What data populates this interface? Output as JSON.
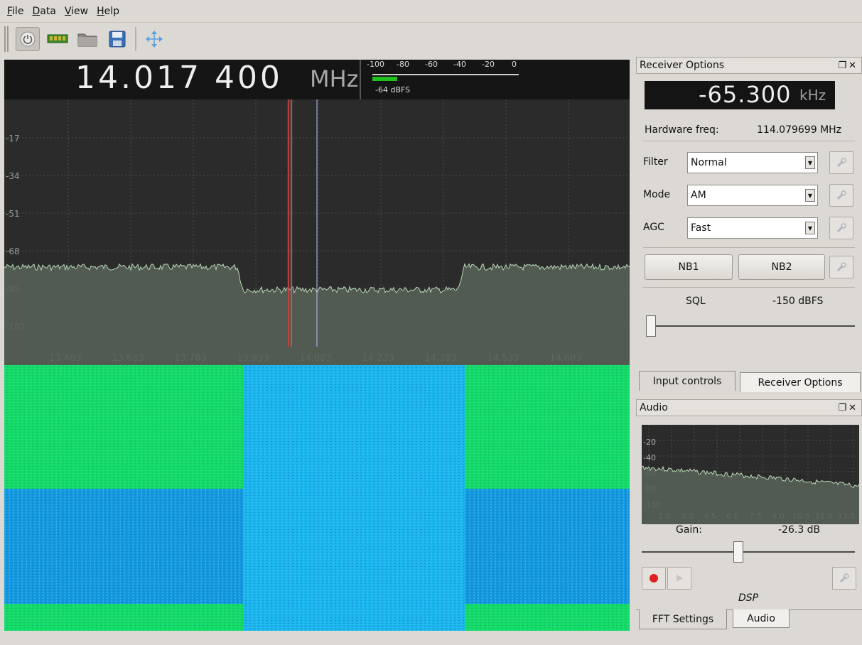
{
  "menu": [
    {
      "first": "F",
      "rest": "ile"
    },
    {
      "first": "D",
      "rest": "ata"
    },
    {
      "first": "V",
      "rest": "iew"
    },
    {
      "first": "H",
      "rest": "elp"
    }
  ],
  "toolbar": {
    "buttons": [
      "power-icon",
      "hardware-board-icon",
      "folder-icon",
      "save-icon",
      "move-arrows-icon"
    ]
  },
  "frequency": {
    "value": "14.017 400",
    "unit": "MHz"
  },
  "smeter": {
    "scale": [
      "-100",
      "-80",
      "-60",
      "-40",
      "-20",
      "0"
    ],
    "readout": "-64 dBFS",
    "level_dbfs": -64
  },
  "spectrum": {
    "y_ticks": [
      "-17",
      "-34",
      "-51",
      "-68",
      "-85",
      "-102"
    ],
    "x_ticks": [
      "13.483",
      "13.633",
      "13.783",
      "13.933",
      "14.083",
      "14.233",
      "14.383",
      "14.533",
      "14.683"
    ]
  },
  "receiver_options": {
    "title": "Receiver Options",
    "offset_value": "-65.300",
    "offset_unit": "kHz",
    "hw_label": "Hardware freq:",
    "hw_value": "114.079699 MHz",
    "filter_label": "Filter",
    "filter_value": "Normal",
    "mode_label": "Mode",
    "mode_value": "AM",
    "agc_label": "AGC",
    "agc_value": "Fast",
    "nb1": "NB1",
    "nb2": "NB2",
    "sql_label": "SQL",
    "sql_value": "-150 dBFS",
    "sql_level": 0.0
  },
  "tabs_top": {
    "input_controls": "Input controls",
    "receiver_options": "Receiver Options"
  },
  "audio": {
    "title": "Audio",
    "y_ticks": [
      "-20",
      "-40",
      "-60",
      "-80",
      "-100"
    ],
    "x_ticks": [
      "1.5",
      "3.0",
      "4.5",
      "6.0",
      "7.5",
      "9.0",
      "10.5",
      "12.0",
      "13.5"
    ],
    "gain_label": "Gain:",
    "gain_value": "-26.3 dB",
    "gain_level": 0.45,
    "dsp_label": "DSP"
  },
  "tabs_bottom": {
    "fft_settings": "FFT Settings",
    "audio": "Audio"
  },
  "colors": {
    "accent_green": "#20c020",
    "trace": "#b8d8b8",
    "waterfall_blue": "#1aa0e8",
    "waterfall_green": "#18e060"
  }
}
